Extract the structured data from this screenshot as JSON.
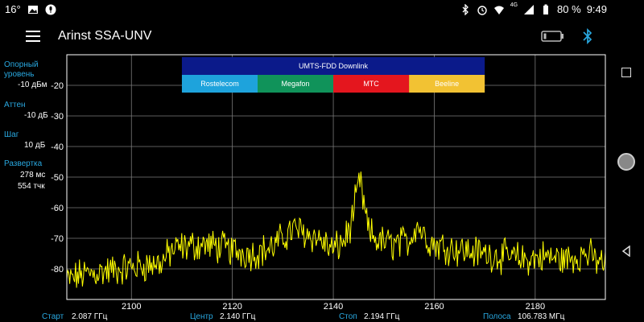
{
  "status_bar": {
    "temperature": "16°",
    "network": "4G",
    "battery_percent": "80 %",
    "time": "9:49",
    "icons": [
      "image-icon",
      "microphone-icon",
      "bluetooth-icon",
      "alarm-icon",
      "wifi-icon",
      "signal-icon",
      "battery-icon"
    ]
  },
  "app_bar": {
    "title": "Arinst SSA-UNV",
    "icons": [
      "menu-icon",
      "device-battery-icon",
      "bluetooth-icon"
    ],
    "bluetooth_color": "#29a8e0"
  },
  "left_panel": {
    "ref_level_label_1": "Опорный",
    "ref_level_label_2": "уровень",
    "ref_level_value": "-10 дБм",
    "atten_label": "Аттен",
    "atten_value": "-10 дБ",
    "step_label": "Шаг",
    "step_value": "10  дБ",
    "sweep_label": "Развертка",
    "sweep_time": "278 мс",
    "sweep_points": "554 тчк"
  },
  "bottom_bar": {
    "start_label": "Старт",
    "start_value": "2.087 ГГц",
    "center_label": "Центр",
    "center_value": "2.140 ГГц",
    "stop_label": "Стоп",
    "stop_value": "2.194 ГГц",
    "span_label": "Полоса",
    "span_value": "106.783 МГц"
  },
  "bands": {
    "downlink": {
      "label": "UMTS-FDD Downlink",
      "start_mhz": 2110,
      "end_mhz": 2170,
      "color": "#0b1a8a"
    },
    "operators": [
      {
        "label": "Rostelecom",
        "start_mhz": 2110,
        "end_mhz": 2125,
        "color": "#1ea3dc"
      },
      {
        "label": "Megafon",
        "start_mhz": 2125,
        "end_mhz": 2140,
        "color": "#10935a"
      },
      {
        "label": "МТС",
        "start_mhz": 2140,
        "end_mhz": 2155,
        "color": "#e4161e"
      },
      {
        "label": "Beeline",
        "start_mhz": 2155,
        "end_mhz": 2170,
        "color": "#f2c233"
      }
    ]
  },
  "chart_data": {
    "type": "line",
    "xlim": [
      2087.2,
      2193.9
    ],
    "ylim": [
      -90,
      -10
    ],
    "x_ticks": [
      2100,
      2120,
      2140,
      2160,
      2180
    ],
    "y_ticks": [
      -20,
      -30,
      -40,
      -50,
      -60,
      -70,
      -80
    ],
    "grid": true,
    "trace_color": "#ffff00",
    "series": [
      {
        "x": [
          2087,
          2090,
          2094,
          2098,
          2102,
          2106,
          2108,
          2110,
          2114,
          2118,
          2120,
          2124,
          2128,
          2132,
          2134,
          2137,
          2140,
          2142,
          2143.5,
          2144.5,
          2145.3,
          2146,
          2147,
          2149,
          2152,
          2155,
          2156.5,
          2158,
          2160,
          2163,
          2166,
          2170,
          2174,
          2178,
          2182,
          2186,
          2190,
          2194
        ],
        "y": [
          -84,
          -82,
          -81,
          -80,
          -79,
          -78,
          -74,
          -73,
          -72,
          -73,
          -74,
          -75,
          -73,
          -67,
          -68,
          -70,
          -74,
          -71,
          -66,
          -57,
          -51,
          -59,
          -68,
          -71,
          -72,
          -71,
          -65,
          -69,
          -72,
          -73,
          -74,
          -75,
          -76,
          -77,
          -76,
          -77,
          -75,
          -79
        ]
      }
    ]
  }
}
